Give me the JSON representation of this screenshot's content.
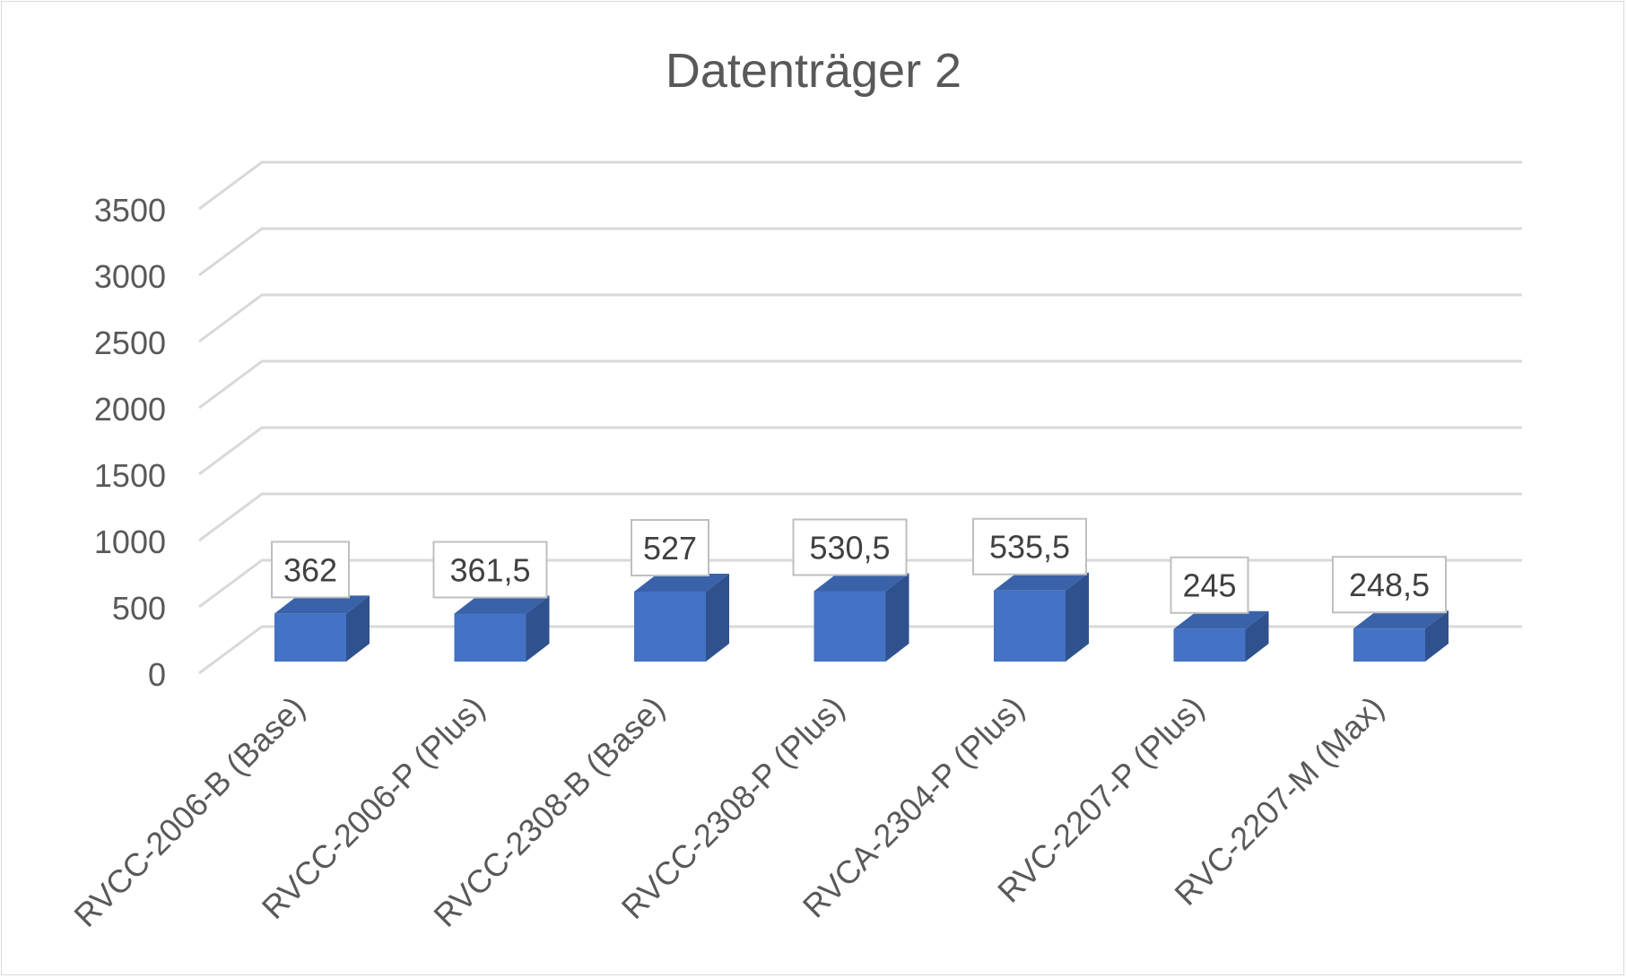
{
  "chart_data": {
    "type": "bar",
    "title": "Datenträger 2",
    "xlabel": "",
    "ylabel": "",
    "categories": [
      "RVCC-2006-B (Base)",
      "RVCC-2006-P (Plus)",
      "RVCC-2308-B (Base)",
      "RVCC-2308-P (Plus)",
      "RVCA-2304-P (Plus)",
      "RVC-2207-P (Plus)",
      "RVC-2207-M (Max)"
    ],
    "values": [
      362,
      361.5,
      527,
      530.5,
      535.5,
      245,
      248.5
    ],
    "data_labels": [
      "362",
      "361,5",
      "527",
      "530,5",
      "535,5",
      "245",
      "248,5"
    ],
    "ylim": [
      0,
      3500
    ],
    "yticks": [
      "0",
      "500",
      "1000",
      "1500",
      "2000",
      "2500",
      "3000",
      "3500"
    ],
    "grid": true,
    "legend": "none",
    "style": "3d-column",
    "colors": {
      "bar_front": "#4472c4",
      "bar_side": "#2f528f",
      "bar_top": "#3a62a8",
      "grid": "#d9d9d9",
      "text": "#595959"
    }
  }
}
